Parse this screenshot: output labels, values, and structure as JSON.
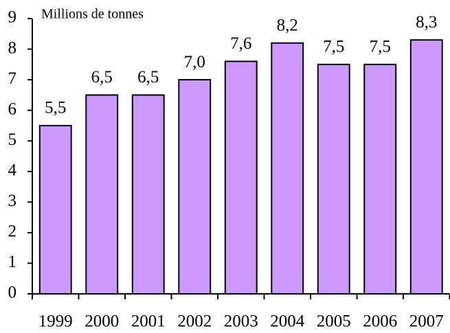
{
  "chart_data": {
    "type": "bar",
    "y_axis_label": "Millions de tonnes",
    "categories": [
      "1999",
      "2000",
      "2001",
      "2002",
      "2003",
      "2004",
      "2005",
      "2006",
      "2007"
    ],
    "values": [
      5.5,
      6.5,
      6.5,
      7.0,
      7.6,
      8.2,
      7.5,
      7.5,
      8.3
    ],
    "value_labels": [
      "5,5",
      "6,5",
      "6,5",
      "7,0",
      "7,6",
      "8,2",
      "7,5",
      "7,5",
      "8,3"
    ],
    "color": "#cc99ff",
    "ylim": [
      0,
      9
    ],
    "yticks": [
      0,
      1,
      2,
      3,
      4,
      5,
      6,
      7,
      8,
      9
    ],
    "grid": false
  }
}
